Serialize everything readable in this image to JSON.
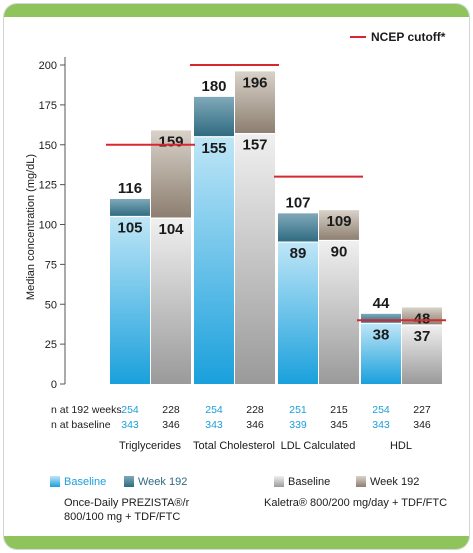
{
  "colors": {
    "border_band": "#8fc35b",
    "cutoff_line": "#d7282f",
    "prezista_baseline": "#55bfe8",
    "prezista_week": "#3f7b92",
    "kaletra_baseline": "#d8d8d8",
    "kaletra_week": "#a99d8f"
  },
  "chart_data": {
    "type": "bar",
    "ylabel": "Median concentration (mg/dL)",
    "ylim": [
      0,
      200
    ],
    "yticks": [
      0,
      25,
      50,
      75,
      100,
      125,
      150,
      175,
      200
    ],
    "categories": [
      "Triglycerides",
      "Total Cholesterol",
      "LDL Calculated",
      "HDL"
    ],
    "series": [
      {
        "name": "Baseline",
        "regimen": "Once-Daily PREZISTA®/r 800/100 mg + TDF/FTC",
        "values": [
          105,
          155,
          89,
          38
        ]
      },
      {
        "name": "Week 192",
        "regimen": "Once-Daily PREZISTA®/r 800/100 mg + TDF/FTC",
        "values": [
          116,
          180,
          107,
          44
        ]
      },
      {
        "name": "Baseline",
        "regimen": "Kaletra® 800/200 mg/day + TDF/FTC",
        "values": [
          104,
          157,
          90,
          37
        ]
      },
      {
        "name": "Week 192",
        "regimen": "Kaletra® 800/200 mg/day + TDF/FTC",
        "values": [
          159,
          196,
          109,
          48
        ]
      }
    ],
    "ncep_cutoff": {
      "label": "NCEP cutoff*",
      "values": [
        150,
        200,
        130,
        40
      ]
    },
    "n_rows": {
      "labels": [
        "n at 192 weeks",
        "n at baseline"
      ],
      "prezista_192": [
        254,
        254,
        251,
        254
      ],
      "prezista_baseline": [
        343,
        343,
        339,
        343
      ],
      "kaletra_192": [
        228,
        228,
        215,
        227
      ],
      "kaletra_baseline": [
        346,
        346,
        345,
        346
      ]
    }
  },
  "legend": {
    "prezista_baseline": "Baseline",
    "prezista_week": "Week 192",
    "kaletra_baseline": "Baseline",
    "kaletra_week": "Week 192",
    "prezista_regimen_line1": "Once-Daily PREZISTA®/r",
    "prezista_regimen_line2": "800/100 mg + TDF/FTC",
    "kaletra_regimen": "Kaletra® 800/200 mg/day + TDF/FTC"
  }
}
